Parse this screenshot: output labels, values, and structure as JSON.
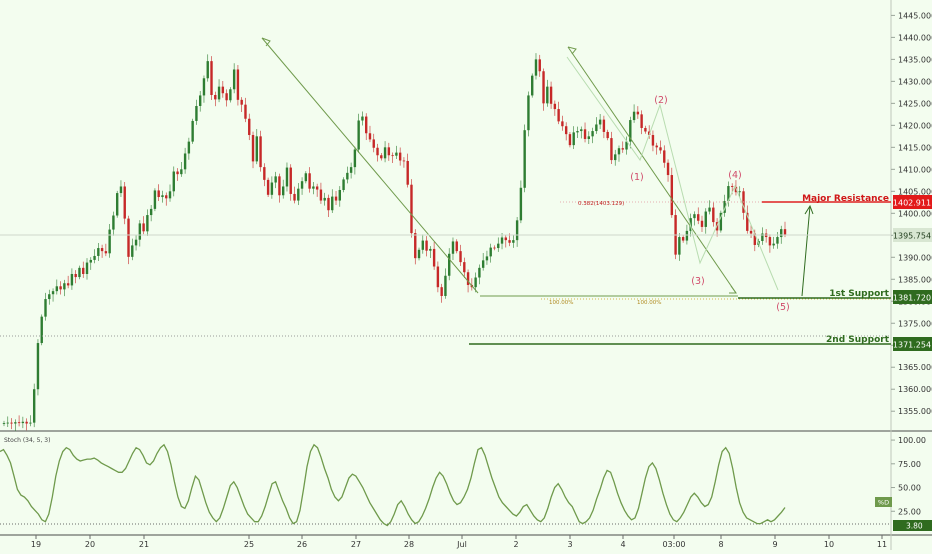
{
  "chart_data": {
    "type": "candlestick",
    "symbol_price_panel": {
      "price_axis": {
        "ticks": [
          "1445.000",
          "1440.000",
          "1435.000",
          "1430.000",
          "1425.000",
          "1420.000",
          "1415.000",
          "1410.000",
          "1405.000",
          "1400.000",
          "1395.000",
          "1390.000",
          "1385.000",
          "1380.000",
          "1375.000",
          "1370.000",
          "1365.000",
          "1360.000",
          "1355.000"
        ],
        "range": [
          1350.5,
          1448.5
        ]
      },
      "current_price": "1395.754",
      "ohlc_close_series": [
        1352.3,
        1352.4,
        1352.2,
        1352.5,
        1352.3,
        1352.6,
        1352.2,
        1352.4,
        1360.0,
        1370.5,
        1376.5,
        1380.5,
        1381.6,
        1382.3,
        1383.4,
        1382.7,
        1384.1,
        1383.6,
        1386.2,
        1385.5,
        1387.6,
        1386.2,
        1388.8,
        1389.4,
        1390.3,
        1392.1,
        1391.4,
        1390.9,
        1396.3,
        1399.5,
        1404.6,
        1406.1,
        1398.8,
        1390.1,
        1392.7,
        1394.0,
        1397.7,
        1395.9,
        1399.6,
        1401.0,
        1405.2,
        1403.7,
        1404.1,
        1403.4,
        1405.0,
        1409.5,
        1408.9,
        1410.0,
        1413.6,
        1416.3,
        1421.0,
        1424.4,
        1426.8,
        1430.7,
        1434.6,
        1426.9,
        1425.9,
        1428.8,
        1427.3,
        1425.7,
        1428.2,
        1432.7,
        1425.8,
        1424.7,
        1421.5,
        1417.8,
        1411.8,
        1417.5,
        1410.5,
        1407.6,
        1404.2,
        1407.0,
        1408.4,
        1404.1,
        1406.1,
        1410.4,
        1404.4,
        1402.9,
        1405.6,
        1407.3,
        1409.1,
        1405.6,
        1406.1,
        1405.4,
        1402.9,
        1403.5,
        1400.7,
        1403.8,
        1402.9,
        1405.3,
        1407.7,
        1409.2,
        1410.5,
        1414.5,
        1421.1,
        1422.0,
        1418.2,
        1416.8,
        1414.9,
        1413.2,
        1412.5,
        1415.0,
        1413.2,
        1413.1,
        1413.8,
        1412.0,
        1411.9,
        1406.5,
        1395.5,
        1389.8,
        1391.7,
        1393.8,
        1391.5,
        1391.9,
        1387.9,
        1383.2,
        1381.2,
        1385.8,
        1390.8,
        1393.6,
        1391.4,
        1388.9,
        1386.6,
        1383.7,
        1383.2,
        1385.4,
        1387.6,
        1389.3,
        1390.2,
        1392.2,
        1392.1,
        1393.1,
        1394.5,
        1393.9,
        1393.3,
        1393.9,
        1398.4,
        1405.8,
        1418.9,
        1426.8,
        1431.3,
        1435.0,
        1432.3,
        1425.0,
        1428.8,
        1424.9,
        1423.7,
        1420.9,
        1419.8,
        1418.0,
        1415.5,
        1418.4,
        1418.7,
        1419.1,
        1416.9,
        1417.5,
        1418.7,
        1420.2,
        1421.3,
        1418.5,
        1417.1,
        1412.1,
        1413.4,
        1414.8,
        1414.5,
        1416.3,
        1421.2,
        1423.1,
        1422.5,
        1419.4,
        1418.6,
        1417.8,
        1415.4,
        1415.0,
        1414.3,
        1411.5,
        1408.7,
        1399.6,
        1390.6,
        1394.6,
        1393.8,
        1396.0,
        1398.9,
        1399.8,
        1398.3,
        1396.9,
        1400.4,
        1401.3,
        1398.0,
        1396.1,
        1400.1,
        1402.8,
        1406.2,
        1406.0,
        1404.8,
        1405.0,
        1400.1,
        1396.0,
        1395.4,
        1392.8,
        1393.7,
        1395.4,
        1394.6,
        1392.7,
        1393.1,
        1394.6,
        1396.4,
        1395.2
      ]
    },
    "annotations": {
      "resistance_label": "Major Resistance",
      "resistance_price": "1402.911",
      "support1_label": "1st Support",
      "support1_price": "1381.720",
      "support2_label": "2nd Support",
      "support2_price": "1371.254",
      "fib_label": "0.382(1403.129)",
      "ext_label_a": "100.00%",
      "ext_label_b": "100.00%",
      "wave_labels": [
        "(1)",
        "(2)",
        "(3)",
        "(4)",
        "(5)"
      ]
    },
    "x_axis": {
      "ticks": [
        "19",
        "20",
        "21",
        "25",
        "26",
        "27",
        "28",
        "Jul",
        "2",
        "3",
        "4",
        "03:00",
        "8",
        "9",
        "10",
        "11"
      ]
    },
    "stochastic_panel": {
      "title": "Stoch (34, 5, 3)",
      "axis_ticks": [
        "100.00",
        "75.00",
        "50.00",
        "25.00"
      ],
      "range": [
        0,
        108.5
      ],
      "current_value": "29.2",
      "series_name": "%D",
      "lower_line_value": "3.80",
      "values": [
        88,
        90,
        84,
        76,
        62,
        48,
        42,
        40,
        36,
        30,
        26,
        22,
        16,
        14,
        22,
        40,
        62,
        78,
        88,
        92,
        90,
        84,
        80,
        78,
        79,
        80,
        80,
        81,
        79,
        76,
        74,
        72,
        70,
        68,
        66,
        66,
        70,
        78,
        86,
        92,
        90,
        84,
        76,
        74,
        78,
        86,
        92,
        95,
        88,
        74,
        56,
        40,
        30,
        28,
        36,
        50,
        62,
        58,
        46,
        34,
        24,
        18,
        14,
        18,
        28,
        40,
        52,
        56,
        50,
        40,
        30,
        22,
        18,
        14,
        14,
        20,
        30,
        42,
        54,
        56,
        46,
        36,
        28,
        18,
        12,
        14,
        26,
        48,
        72,
        88,
        95,
        92,
        82,
        70,
        60,
        48,
        40,
        36,
        40,
        50,
        60,
        64,
        62,
        56,
        50,
        42,
        34,
        28,
        22,
        16,
        12,
        10,
        14,
        22,
        32,
        36,
        30,
        22,
        16,
        12,
        14,
        20,
        28,
        38,
        50,
        60,
        66,
        62,
        54,
        44,
        36,
        32,
        34,
        40,
        48,
        60,
        76,
        90,
        92,
        84,
        72,
        60,
        50,
        40,
        34,
        30,
        26,
        22,
        20,
        24,
        30,
        32,
        26,
        20,
        16,
        14,
        18,
        28,
        40,
        50,
        54,
        48,
        40,
        34,
        30,
        22,
        14,
        12,
        14,
        18,
        26,
        38,
        48,
        60,
        68,
        66,
        56,
        44,
        34,
        26,
        20,
        16,
        18,
        28,
        44,
        60,
        72,
        76,
        70,
        58,
        44,
        32,
        22,
        16,
        14,
        18,
        24,
        32,
        40,
        44,
        40,
        34,
        30,
        32,
        40,
        56,
        74,
        88,
        92,
        86,
        70,
        50,
        34,
        24,
        18,
        16,
        14,
        12,
        12,
        14,
        16,
        14,
        16,
        20,
        24,
        29
      ]
    }
  }
}
